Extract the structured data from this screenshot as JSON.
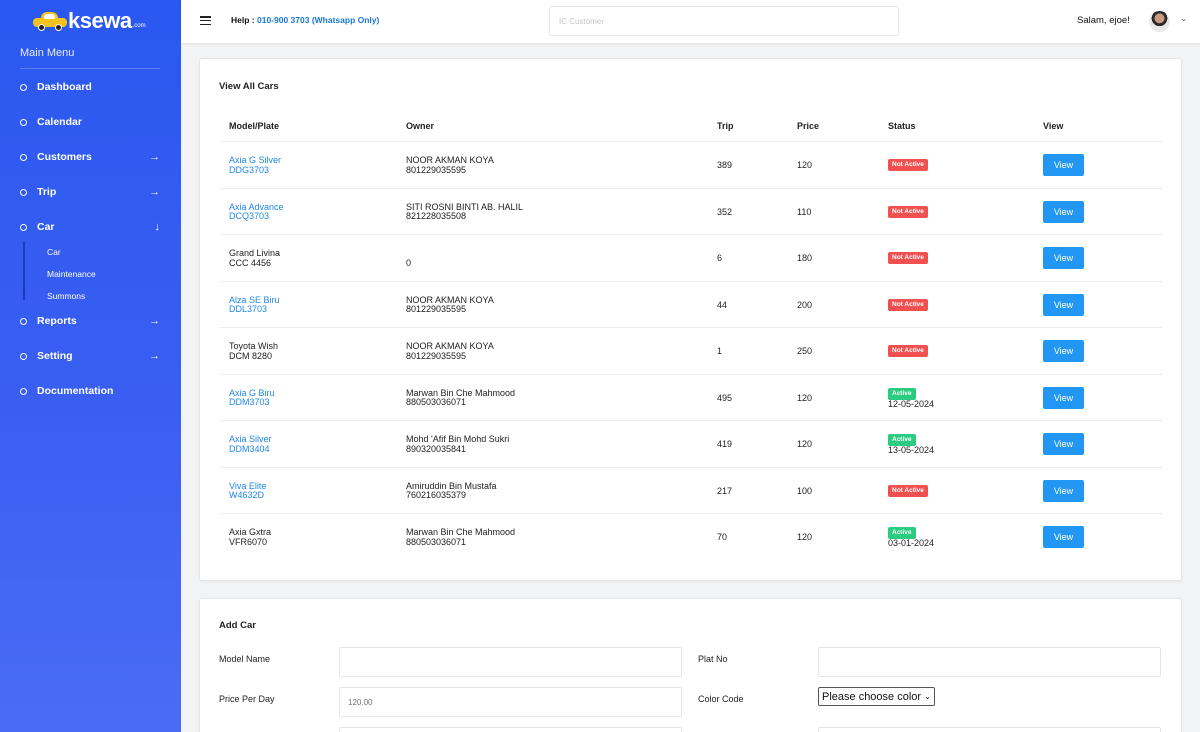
{
  "brand": {
    "name": "ksewa",
    "suffix": ".com"
  },
  "sidebar": {
    "menu_title": "Main Menu",
    "items": [
      {
        "label": "Dashboard",
        "arrow": ""
      },
      {
        "label": "Calendar",
        "arrow": ""
      },
      {
        "label": "Customers",
        "arrow": "→"
      },
      {
        "label": "Trip",
        "arrow": "→"
      },
      {
        "label": "Car",
        "arrow": "↓"
      },
      {
        "label": "Reports",
        "arrow": "→"
      },
      {
        "label": "Setting",
        "arrow": "→"
      },
      {
        "label": "Documentation",
        "arrow": ""
      }
    ],
    "car_submenu": [
      "Car",
      "Maintenance",
      "Summons"
    ]
  },
  "topbar": {
    "help_label": "Help :",
    "help_phone": "010-900 3703 (Whatsapp Only)",
    "search_placeholder": "IC Customer",
    "greeting": "Salam, ejoe!"
  },
  "cars_table": {
    "title": "View All Cars",
    "headers": [
      "Model/Plate",
      "Owner",
      "Trip",
      "Price",
      "Status",
      "View"
    ],
    "rows": [
      {
        "model": "Axia G Silver",
        "plate": "DDG3703",
        "linked": true,
        "owner": "NOOR AKMAN KOYA",
        "owner_id": "801229035595",
        "trip": "389",
        "price": "120",
        "status": "Not Active",
        "status_date": "",
        "view": "View"
      },
      {
        "model": "Axia Advance",
        "plate": "DCQ3703",
        "linked": true,
        "owner": "SITI ROSNI BINTI AB. HALIL",
        "owner_id": "821228035508",
        "trip": "352",
        "price": "110",
        "status": "Not Active",
        "status_date": "",
        "view": "View"
      },
      {
        "model": "Grand Livina",
        "plate": "CCC 4456",
        "linked": false,
        "owner": "",
        "owner_id": "0",
        "trip": "6",
        "price": "180",
        "status": "Not Active",
        "status_date": "",
        "view": "View"
      },
      {
        "model": "Alza SE Biru",
        "plate": "DDL3703",
        "linked": true,
        "owner": "NOOR AKMAN KOYA",
        "owner_id": "801229035595",
        "trip": "44",
        "price": "200",
        "status": "Not Active",
        "status_date": "",
        "view": "View"
      },
      {
        "model": "Toyota Wish",
        "plate": "DCM 8280",
        "linked": false,
        "owner": "NOOR AKMAN KOYA",
        "owner_id": "801229035595",
        "trip": "1",
        "price": "250",
        "status": "Not Active",
        "status_date": "",
        "view": "View"
      },
      {
        "model": "Axia G Biru",
        "plate": "DDM3703",
        "linked": true,
        "owner": "Marwan Bin Che Mahmood",
        "owner_id": "880503036071",
        "trip": "495",
        "price": "120",
        "status": "Active",
        "status_date": "12-05-2024",
        "view": "View"
      },
      {
        "model": "Axia Silver",
        "plate": "DDM3404",
        "linked": true,
        "owner": "Mohd 'Afif Bin Mohd Sukri",
        "owner_id": "890320035841",
        "trip": "419",
        "price": "120",
        "status": "Active",
        "status_date": "13-05-2024",
        "view": "View"
      },
      {
        "model": "Viva Elite",
        "plate": "W4632D",
        "linked": true,
        "owner": "Amiruddin Bin Mustafa",
        "owner_id": "760216035379",
        "trip": "217",
        "price": "100",
        "status": "Not Active",
        "status_date": "",
        "view": "View"
      },
      {
        "model": "Axia Gxtra",
        "plate": "VFR6070",
        "linked": false,
        "owner": "Marwan Bin Che Mahmood",
        "owner_id": "880503036071",
        "trip": "70",
        "price": "120",
        "status": "Active",
        "status_date": "03-01-2024",
        "view": "View"
      }
    ]
  },
  "add_car": {
    "title": "Add Car",
    "model_label": "Model Name",
    "model_value": "",
    "plate_label": "Plat No",
    "plate_value": "",
    "price_label": "Price Per Day",
    "price_placeholder": "120.00",
    "color_label": "Color Code",
    "color_selected": "Please choose color"
  },
  "colors": {
    "sidebar": "#2a58f0",
    "link": "#1e88e5",
    "button": "#2196f3",
    "inactive": "#f05050",
    "active": "#2bcc82"
  }
}
